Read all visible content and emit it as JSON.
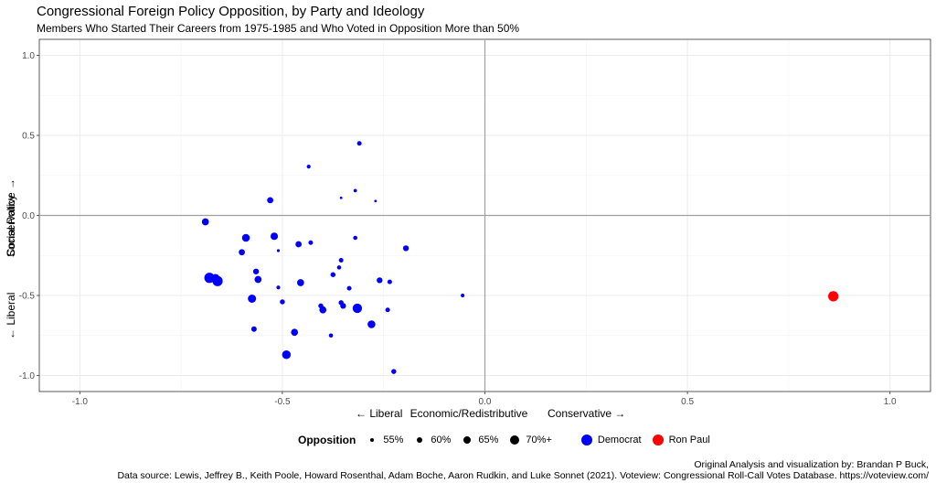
{
  "title": "Congressional Foreign Policy Opposition, by Party and Ideology",
  "subtitle": "Members Who Started Their Careers from 1975-1985 and Who Voted in Opposition More than 50%",
  "chart_data": {
    "type": "scatter",
    "xlabel_parts": [
      "← Liberal",
      "Economic/Redistributive",
      "Conservative →"
    ],
    "ylabel_parts": [
      "← Liberal",
      "Social Policy",
      "Conservative →"
    ],
    "xlim": [
      -1.1,
      1.1
    ],
    "ylim": [
      -1.1,
      1.1
    ],
    "x_ticks": [
      -1.0,
      -0.5,
      0.0,
      0.5,
      1.0
    ],
    "x_tick_labels": [
      "-1.0",
      "-0.5",
      "0.0",
      "0.5",
      "1.0"
    ],
    "y_ticks": [
      1.0,
      0.5,
      0.0,
      -0.5,
      -1.0
    ],
    "y_tick_labels": [
      "1.0",
      "0.5",
      "0.0",
      "-0.5",
      "-1.0"
    ],
    "colors": {
      "Democrat": "#0000ff",
      "Ron Paul": "#ff0000"
    },
    "points": [
      {
        "x": -0.69,
        "y": -0.04,
        "opposition": 62,
        "group": "Democrat"
      },
      {
        "x": -0.68,
        "y": -0.39,
        "opposition": 70,
        "group": "Democrat"
      },
      {
        "x": -0.665,
        "y": -0.39,
        "opposition": 64,
        "group": "Democrat"
      },
      {
        "x": -0.66,
        "y": -0.41,
        "opposition": 70,
        "group": "Democrat"
      },
      {
        "x": -0.6,
        "y": -0.23,
        "opposition": 60,
        "group": "Democrat"
      },
      {
        "x": -0.59,
        "y": -0.14,
        "opposition": 64,
        "group": "Democrat"
      },
      {
        "x": -0.575,
        "y": -0.52,
        "opposition": 65,
        "group": "Democrat"
      },
      {
        "x": -0.57,
        "y": -0.71,
        "opposition": 58,
        "group": "Democrat"
      },
      {
        "x": -0.565,
        "y": -0.35,
        "opposition": 59,
        "group": "Democrat"
      },
      {
        "x": -0.56,
        "y": -0.4,
        "opposition": 62,
        "group": "Democrat"
      },
      {
        "x": -0.53,
        "y": 0.095,
        "opposition": 60,
        "group": "Democrat"
      },
      {
        "x": -0.52,
        "y": -0.13,
        "opposition": 63,
        "group": "Democrat"
      },
      {
        "x": -0.51,
        "y": -0.45,
        "opposition": 54,
        "group": "Democrat"
      },
      {
        "x": -0.51,
        "y": -0.22,
        "opposition": 52,
        "group": "Democrat"
      },
      {
        "x": -0.5,
        "y": -0.54,
        "opposition": 57,
        "group": "Democrat"
      },
      {
        "x": -0.49,
        "y": -0.87,
        "opposition": 66,
        "group": "Democrat"
      },
      {
        "x": -0.47,
        "y": -0.73,
        "opposition": 62,
        "group": "Democrat"
      },
      {
        "x": -0.46,
        "y": -0.18,
        "opposition": 60,
        "group": "Democrat"
      },
      {
        "x": -0.455,
        "y": -0.42,
        "opposition": 62,
        "group": "Democrat"
      },
      {
        "x": -0.435,
        "y": 0.305,
        "opposition": 54,
        "group": "Democrat"
      },
      {
        "x": -0.43,
        "y": -0.17,
        "opposition": 56,
        "group": "Democrat"
      },
      {
        "x": -0.405,
        "y": -0.565,
        "opposition": 57,
        "group": "Democrat"
      },
      {
        "x": -0.4,
        "y": -0.59,
        "opposition": 62,
        "group": "Democrat"
      },
      {
        "x": -0.38,
        "y": -0.75,
        "opposition": 55,
        "group": "Democrat"
      },
      {
        "x": -0.375,
        "y": -0.37,
        "opposition": 57,
        "group": "Democrat"
      },
      {
        "x": -0.36,
        "y": -0.325,
        "opposition": 55,
        "group": "Democrat"
      },
      {
        "x": -0.355,
        "y": -0.28,
        "opposition": 56,
        "group": "Democrat"
      },
      {
        "x": -0.355,
        "y": -0.545,
        "opposition": 57,
        "group": "Democrat"
      },
      {
        "x": -0.35,
        "y": -0.565,
        "opposition": 59,
        "group": "Democrat"
      },
      {
        "x": -0.355,
        "y": 0.11,
        "opposition": 51,
        "group": "Democrat"
      },
      {
        "x": -0.335,
        "y": -0.455,
        "opposition": 56,
        "group": "Democrat"
      },
      {
        "x": -0.32,
        "y": 0.155,
        "opposition": 53,
        "group": "Democrat"
      },
      {
        "x": -0.32,
        "y": -0.14,
        "opposition": 55,
        "group": "Democrat"
      },
      {
        "x": -0.315,
        "y": -0.58,
        "opposition": 68,
        "group": "Democrat"
      },
      {
        "x": -0.31,
        "y": 0.45,
        "opposition": 56,
        "group": "Democrat"
      },
      {
        "x": -0.28,
        "y": -0.68,
        "opposition": 64,
        "group": "Democrat"
      },
      {
        "x": -0.27,
        "y": 0.09,
        "opposition": 51,
        "group": "Democrat"
      },
      {
        "x": -0.26,
        "y": -0.405,
        "opposition": 59,
        "group": "Democrat"
      },
      {
        "x": -0.24,
        "y": -0.59,
        "opposition": 56,
        "group": "Democrat"
      },
      {
        "x": -0.235,
        "y": -0.415,
        "opposition": 56,
        "group": "Democrat"
      },
      {
        "x": -0.225,
        "y": -0.975,
        "opposition": 57,
        "group": "Democrat"
      },
      {
        "x": -0.195,
        "y": -0.205,
        "opposition": 59,
        "group": "Democrat"
      },
      {
        "x": -0.055,
        "y": -0.5,
        "opposition": 54,
        "group": "Democrat"
      },
      {
        "x": 0.86,
        "y": -0.505,
        "opposition": 70,
        "group": "Ron Paul"
      }
    ]
  },
  "legend": {
    "size_title": "Opposition",
    "size_labels": [
      "55%",
      "60%",
      "65%",
      "70%+"
    ],
    "color_labels": [
      "Democrat",
      "Ron Paul"
    ]
  },
  "caption": {
    "line1": "Original Analysis and visualization by: Brandan P Buck,",
    "line2": "Data source: Lewis, Jeffrey B., Keith Poole, Howard Rosenthal, Adam Boche, Aaron Rudkin, and Luke Sonnet (2021). Voteview: Congressional Roll-Call Votes Database. https://voteview.com/"
  }
}
